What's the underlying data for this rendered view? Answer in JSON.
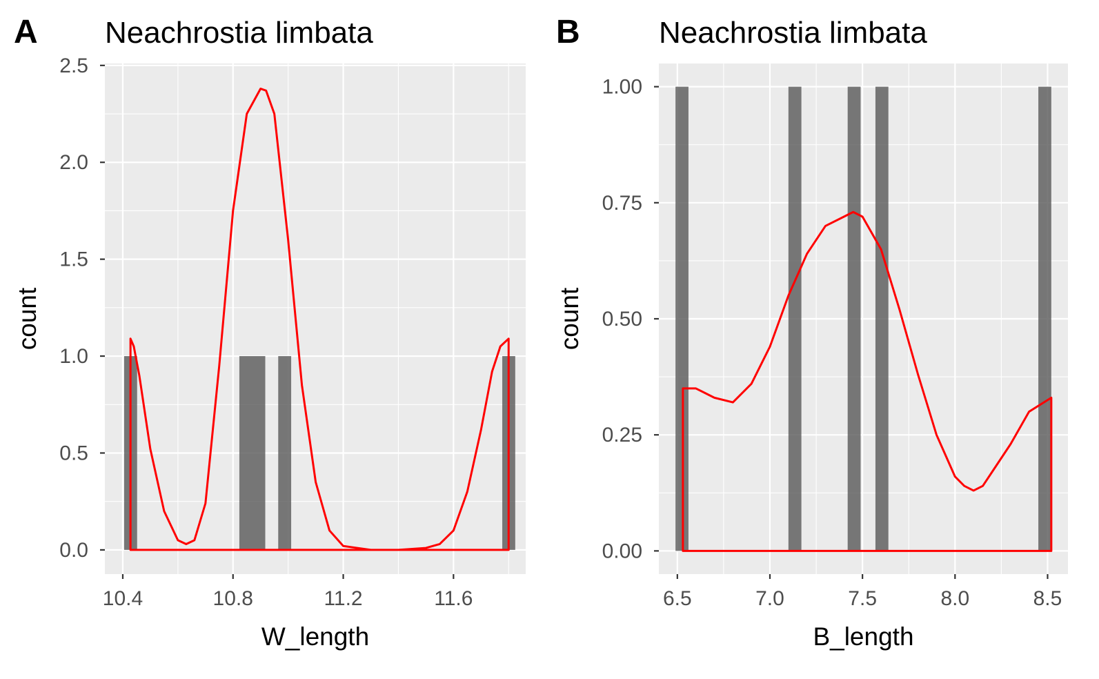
{
  "chart_data": [
    {
      "type": "bar",
      "tag": "A",
      "title": "Neachrostia limbata",
      "xlabel": "W_length",
      "ylabel": "count",
      "xlim": [
        10.335,
        11.862
      ],
      "ylim": [
        -0.125,
        2.51
      ],
      "x_ticks": [
        10.4,
        10.8,
        11.2,
        11.6
      ],
      "x_tick_labels": [
        "10.4",
        "10.8",
        "11.2",
        "11.6"
      ],
      "y_ticks": [
        0,
        0.5,
        1,
        1.5,
        2,
        2.5
      ],
      "y_tick_labels": [
        "0.0",
        "0.5",
        "1.0",
        "1.5",
        "2.0",
        "2.5"
      ],
      "grid": true,
      "bars": [
        {
          "x0": 10.405,
          "x1": 10.452,
          "count": 1
        },
        {
          "x0": 10.823,
          "x1": 10.917,
          "count": 1
        },
        {
          "x0": 10.964,
          "x1": 11.011,
          "count": 1
        },
        {
          "x0": 11.777,
          "x1": 11.824,
          "count": 1
        }
      ],
      "density": {
        "color": "#ff0000",
        "x": [
          10.428,
          10.44,
          10.46,
          10.5,
          10.55,
          10.6,
          10.63,
          10.66,
          10.7,
          10.75,
          10.8,
          10.85,
          10.9,
          10.92,
          10.95,
          11.0,
          11.05,
          11.1,
          11.15,
          11.2,
          11.3,
          11.4,
          11.5,
          11.55,
          11.6,
          11.65,
          11.7,
          11.74,
          11.77,
          11.8
        ],
        "y": [
          1.09,
          1.05,
          0.9,
          0.52,
          0.2,
          0.05,
          0.03,
          0.05,
          0.24,
          0.95,
          1.75,
          2.25,
          2.38,
          2.37,
          2.25,
          1.6,
          0.85,
          0.35,
          0.1,
          0.02,
          0.0,
          0.0,
          0.01,
          0.03,
          0.1,
          0.3,
          0.62,
          0.92,
          1.05,
          1.09
        ]
      }
    },
    {
      "type": "bar",
      "tag": "B",
      "title": "Neachrostia limbata",
      "xlabel": "B_length",
      "ylabel": "count",
      "xlim": [
        6.4,
        8.61
      ],
      "ylim": [
        -0.05,
        1.05
      ],
      "x_ticks": [
        6.5,
        7.0,
        7.5,
        8.0,
        8.5
      ],
      "x_tick_labels": [
        "6.5",
        "7.0",
        "7.5",
        "8.0",
        "8.5"
      ],
      "y_ticks": [
        0,
        0.25,
        0.5,
        0.75,
        1.0
      ],
      "y_tick_labels": [
        "0.00",
        "0.25",
        "0.50",
        "0.75",
        "1.00"
      ],
      "grid": true,
      "bars": [
        {
          "x0": 6.49,
          "x1": 6.56,
          "count": 1
        },
        {
          "x0": 7.1,
          "x1": 7.17,
          "count": 1
        },
        {
          "x0": 7.42,
          "x1": 7.49,
          "count": 1
        },
        {
          "x0": 7.57,
          "x1": 7.64,
          "count": 1
        },
        {
          "x0": 8.45,
          "x1": 8.52,
          "count": 1
        }
      ],
      "density": {
        "color": "#ff0000",
        "x": [
          6.53,
          6.6,
          6.7,
          6.8,
          6.9,
          7.0,
          7.1,
          7.2,
          7.3,
          7.4,
          7.45,
          7.5,
          7.6,
          7.7,
          7.8,
          7.9,
          8.0,
          8.05,
          8.1,
          8.15,
          8.2,
          8.3,
          8.4,
          8.52
        ],
        "y": [
          0.35,
          0.35,
          0.33,
          0.32,
          0.36,
          0.44,
          0.55,
          0.64,
          0.7,
          0.72,
          0.73,
          0.72,
          0.65,
          0.52,
          0.38,
          0.25,
          0.16,
          0.14,
          0.13,
          0.14,
          0.17,
          0.23,
          0.3,
          0.33
        ]
      }
    }
  ]
}
